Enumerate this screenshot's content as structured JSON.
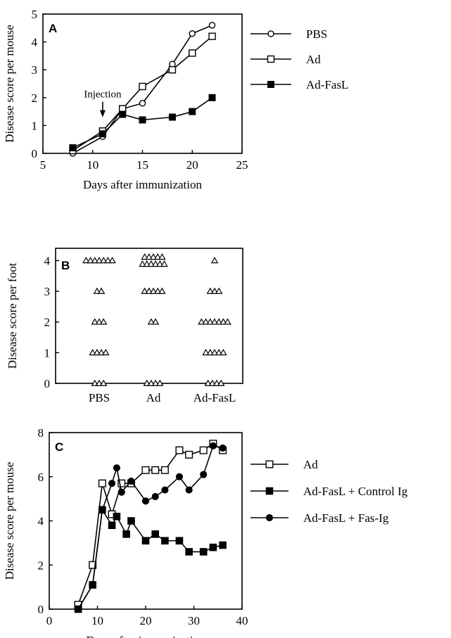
{
  "chart_data": [
    {
      "panel": "A",
      "type": "line",
      "xlabel": "Days after immunization",
      "ylabel": "Disease score per mouse",
      "xlim": [
        5,
        25
      ],
      "ylim": [
        0,
        5
      ],
      "x_ticks": [
        "5",
        "10",
        "15",
        "20",
        "25"
      ],
      "y_ticks": [
        "0",
        "1",
        "2",
        "3",
        "4",
        "5"
      ],
      "annotation": {
        "text": "Injection",
        "x": 11,
        "y": 1.5
      },
      "legend_position": "right",
      "series": [
        {
          "name": "PBS",
          "marker": "open-circle",
          "x": [
            8,
            11,
            13,
            15,
            18,
            20,
            22
          ],
          "y": [
            0.0,
            0.6,
            1.6,
            1.8,
            3.2,
            4.3,
            4.6
          ]
        },
        {
          "name": "Ad",
          "marker": "open-square",
          "x": [
            8,
            11,
            13,
            15,
            18,
            20,
            22
          ],
          "y": [
            0.1,
            0.8,
            1.6,
            2.4,
            3.0,
            3.6,
            4.2
          ]
        },
        {
          "name": "Ad-FasL",
          "marker": "filled-square",
          "x": [
            8,
            11,
            13,
            15,
            18,
            20,
            22
          ],
          "y": [
            0.2,
            0.7,
            1.4,
            1.2,
            1.3,
            1.5,
            2.0
          ]
        }
      ]
    },
    {
      "panel": "B",
      "type": "scatter",
      "xlabel": "",
      "ylabel": "Disease score per foot",
      "ylim": [
        0,
        4.4
      ],
      "categories": [
        "PBS",
        "Ad",
        "Ad-FasL"
      ],
      "y_ticks": [
        "0",
        "1",
        "2",
        "3",
        "4"
      ],
      "marker": "open-triangle",
      "groups": [
        {
          "category": "PBS",
          "score_counts": {
            "0": 3,
            "1": 4,
            "2": 3,
            "3": 2,
            "4": 7
          }
        },
        {
          "category": "Ad",
          "score_counts": {
            "0": 4,
            "2": 2,
            "3": 5,
            "4": 11
          }
        },
        {
          "category": "Ad-FasL",
          "score_counts": {
            "0": 4,
            "1": 5,
            "2": 7,
            "3": 3,
            "4": 1
          }
        }
      ]
    },
    {
      "panel": "C",
      "type": "line",
      "xlabel": "Days after immunization",
      "ylabel": "Disease score per mouse",
      "xlim": [
        0,
        40
      ],
      "ylim": [
        0,
        8
      ],
      "x_ticks": [
        "0",
        "10",
        "20",
        "30",
        "40"
      ],
      "y_ticks": [
        "0",
        "2",
        "4",
        "6",
        "8"
      ],
      "legend_position": "right",
      "series": [
        {
          "name": "Ad",
          "marker": "open-square",
          "x": [
            6,
            9,
            11,
            13,
            15,
            17,
            20,
            22,
            24,
            27,
            29,
            32,
            34,
            36
          ],
          "y": [
            0.2,
            2.0,
            5.7,
            4.3,
            5.7,
            5.7,
            6.3,
            6.3,
            6.3,
            7.2,
            7.0,
            7.2,
            7.5,
            7.2
          ]
        },
        {
          "name": "Ad-FasL + Control Ig",
          "marker": "filled-square",
          "x": [
            6,
            9,
            11,
            13,
            14,
            16,
            17,
            20,
            22,
            24,
            27,
            29,
            32,
            34,
            36
          ],
          "y": [
            0.0,
            1.1,
            4.5,
            3.8,
            4.2,
            3.4,
            4.0,
            3.1,
            3.4,
            3.1,
            3.1,
            2.6,
            2.6,
            2.8,
            2.9
          ]
        },
        {
          "name": "Ad-FasL + Fas-Ig",
          "marker": "filled-circle",
          "x": [
            6,
            9,
            11,
            13,
            14,
            15,
            17,
            20,
            22,
            24,
            27,
            29,
            32,
            34,
            36
          ],
          "y": [
            0.0,
            1.1,
            4.5,
            5.7,
            6.4,
            5.3,
            5.8,
            4.9,
            5.1,
            5.4,
            6.0,
            5.4,
            6.1,
            7.4,
            7.3
          ]
        }
      ]
    }
  ]
}
